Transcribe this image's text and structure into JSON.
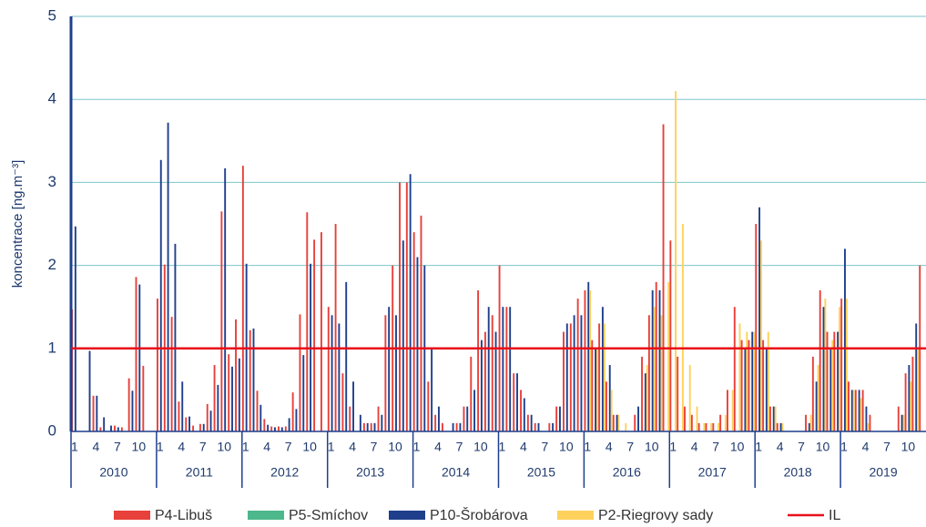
{
  "chart_data": {
    "type": "bar",
    "ylabel": "koncentrace [ng.m⁻³]",
    "ylim": [
      0,
      5
    ],
    "yticks": [
      0,
      1,
      2,
      3,
      4,
      5
    ],
    "grid": true,
    "categories": [
      "1",
      null,
      null,
      "4",
      null,
      null,
      "7",
      null,
      null,
      "10",
      null,
      null,
      "1",
      null,
      null,
      "4",
      null,
      null,
      "7",
      null,
      null,
      "10",
      null,
      null,
      "1",
      null,
      null,
      "4",
      null,
      null,
      "7",
      null,
      null,
      "10",
      null,
      null,
      "1",
      null,
      null,
      "4",
      null,
      null,
      "7",
      null,
      null,
      "10",
      null,
      null,
      "1",
      null,
      null,
      "4",
      null,
      null,
      "7",
      null,
      null,
      "10",
      null,
      null,
      "1",
      null,
      null,
      "4",
      null,
      null,
      "7",
      null,
      null,
      "10",
      null,
      null,
      "1",
      null,
      null,
      "4",
      null,
      null,
      "7",
      null,
      null,
      "10",
      null,
      null,
      "1",
      null,
      null,
      "4",
      null,
      null,
      "7",
      null,
      null,
      "10",
      null,
      null,
      "1",
      null,
      null,
      "4",
      null,
      null,
      "7",
      null,
      null,
      "10",
      null,
      null,
      "1",
      null,
      null,
      "4",
      null,
      null,
      "7",
      null,
      null,
      "10",
      null,
      null
    ],
    "years": [
      "2010",
      "2011",
      "2012",
      "2013",
      "2014",
      "2015",
      "2016",
      "2017",
      "2018",
      "2019"
    ],
    "series": [
      {
        "name": "P4-Libuš",
        "color": "#e8403a",
        "values": [
          1.47,
          null,
          null,
          0.43,
          0.05,
          null,
          0.07,
          0.05,
          0.64,
          1.86,
          0.79,
          null,
          1.6,
          2.01,
          1.38,
          0.36,
          0.17,
          0.07,
          0.09,
          0.33,
          0.8,
          2.65,
          0.93,
          1.35,
          3.2,
          1.22,
          0.49,
          0.15,
          0.06,
          0.06,
          0.06,
          0.47,
          1.41,
          2.64,
          2.31,
          2.4,
          1.5,
          2.5,
          0.7,
          0.3,
          null,
          0.1,
          0.1,
          0.3,
          1.4,
          2.0,
          3.0,
          3.0,
          2.4,
          2.6,
          0.6,
          0.2,
          0.1,
          null,
          0.1,
          0.3,
          0.9,
          1.7,
          1.2,
          1.4,
          2.0,
          1.5,
          0.7,
          0.5,
          0.2,
          0.1,
          null,
          0.1,
          0.3,
          1.2,
          1.3,
          1.6,
          1.7,
          1.1,
          1.3,
          0.6,
          0.2,
          null,
          null,
          0.2,
          0.9,
          1.4,
          1.8,
          3.7,
          2.3,
          0.9,
          0.3,
          0.2,
          0.1,
          0.1,
          0.1,
          0.2,
          0.5,
          1.5,
          1.1,
          1.1,
          2.5,
          1.1,
          0.3,
          0.1,
          null,
          null,
          null,
          0.2,
          0.9,
          1.7,
          1.2,
          1.2,
          1.6,
          0.6,
          0.5,
          0.5,
          0.2,
          null,
          null,
          null,
          0.3,
          0.7,
          0.9,
          2.0
        ]
      },
      {
        "name": "P5-Smíchov",
        "color": "#4cb88c",
        "values": [
          null,
          null,
          null,
          null,
          null,
          null,
          null,
          null,
          null,
          null,
          null,
          null,
          null,
          null,
          null,
          null,
          null,
          null,
          null,
          null,
          null,
          null,
          null,
          null,
          null,
          null,
          null,
          null,
          null,
          null,
          null,
          null,
          null,
          null,
          null,
          null,
          null,
          null,
          null,
          null,
          null,
          null,
          null,
          null,
          null,
          null,
          null,
          null,
          null,
          null,
          null,
          null,
          null,
          null,
          null,
          null,
          null,
          null,
          null,
          null,
          null,
          null,
          null,
          null,
          null,
          null,
          null,
          null,
          null,
          null,
          null,
          null,
          null,
          null,
          null,
          null,
          null,
          null,
          null,
          null,
          null,
          null,
          null,
          null,
          null,
          null,
          null,
          null,
          null,
          null,
          null,
          null,
          null,
          null,
          null,
          null,
          null,
          null,
          null,
          null,
          null,
          null,
          null,
          null,
          null,
          null,
          null,
          null,
          null,
          null,
          null,
          null,
          null,
          null,
          null,
          null,
          null,
          null,
          null,
          null
        ]
      },
      {
        "name": "P10-Šrobárova",
        "color": "#1f3f8c",
        "values": [
          2.47,
          null,
          0.97,
          0.43,
          0.17,
          0.07,
          0.05,
          null,
          0.49,
          1.77,
          null,
          null,
          3.27,
          3.72,
          2.26,
          0.6,
          0.18,
          null,
          0.09,
          0.25,
          0.56,
          3.17,
          0.78,
          0.88,
          2.02,
          1.24,
          0.32,
          0.08,
          0.05,
          0.05,
          0.16,
          0.27,
          0.92,
          2.02,
          null,
          null,
          1.4,
          1.3,
          1.8,
          0.6,
          0.2,
          0.1,
          0.1,
          0.2,
          1.5,
          1.4,
          2.3,
          3.1,
          2.1,
          2.0,
          1.0,
          0.3,
          null,
          0.1,
          0.1,
          0.3,
          0.5,
          1.1,
          1.5,
          1.2,
          1.5,
          1.5,
          0.7,
          0.4,
          0.2,
          0.1,
          null,
          0.1,
          0.3,
          1.3,
          1.4,
          1.4,
          1.8,
          1.0,
          1.5,
          0.8,
          0.2,
          null,
          null,
          0.3,
          0.7,
          1.7,
          1.7,
          null,
          null,
          null,
          null,
          null,
          null,
          null,
          null,
          null,
          null,
          null,
          1.0,
          1.2,
          2.7,
          1.0,
          0.3,
          0.1,
          null,
          null,
          null,
          0.1,
          0.6,
          1.5,
          1.0,
          1.2,
          2.2,
          0.5,
          0.5,
          0.3,
          null,
          null,
          null,
          null,
          0.2,
          0.8,
          1.3,
          null
        ]
      },
      {
        "name": "P2-Riegrovy sady",
        "color": "#fdd15c",
        "values": [
          null,
          null,
          null,
          null,
          null,
          null,
          null,
          null,
          null,
          null,
          null,
          null,
          null,
          null,
          null,
          null,
          null,
          null,
          null,
          null,
          null,
          null,
          null,
          null,
          null,
          null,
          null,
          null,
          null,
          null,
          null,
          null,
          null,
          null,
          null,
          null,
          null,
          null,
          null,
          null,
          null,
          null,
          null,
          null,
          null,
          null,
          null,
          null,
          null,
          null,
          null,
          null,
          null,
          null,
          null,
          null,
          null,
          null,
          null,
          null,
          null,
          null,
          null,
          null,
          null,
          null,
          null,
          null,
          null,
          null,
          null,
          null,
          1.7,
          1.0,
          1.3,
          0.5,
          0.2,
          0.1,
          null,
          null,
          0.8,
          1.5,
          1.4,
          1.8,
          4.1,
          2.5,
          0.8,
          0.3,
          0.1,
          0.1,
          0.1,
          0.2,
          0.5,
          1.3,
          1.2,
          1.2,
          2.3,
          1.2,
          0.3,
          0.1,
          null,
          null,
          null,
          0.2,
          0.8,
          1.6,
          1.1,
          1.5,
          1.6,
          0.5,
          0.4,
          0.1,
          null,
          null,
          null,
          null,
          0.2,
          0.6,
          1.0,
          null
        ]
      }
    ],
    "threshold": {
      "name": "IL",
      "value": 1,
      "color": "#e8101a"
    }
  }
}
